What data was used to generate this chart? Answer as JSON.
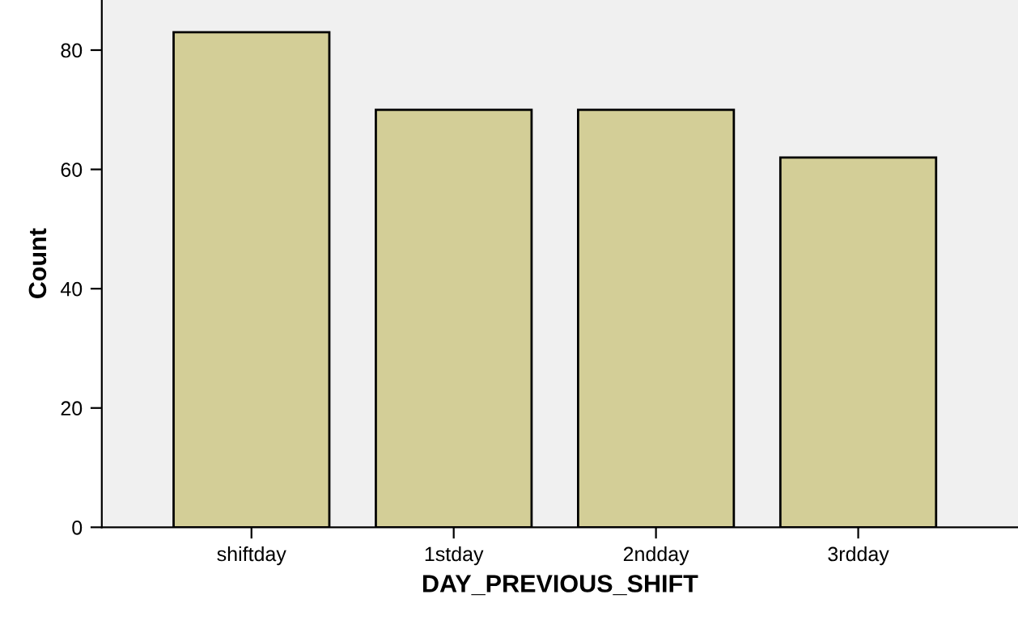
{
  "chart_data": {
    "type": "bar",
    "xlabel": "DAY_PREVIOUS_SHIFT",
    "ylabel": "Count",
    "categories": [
      "shiftday",
      "1stday",
      "2ndday",
      "3rdday"
    ],
    "values": [
      83,
      70,
      70,
      62
    ],
    "color": "#d3ce97",
    "ylim": [
      0,
      88.4
    ],
    "yticks": [
      0,
      20,
      40,
      60,
      80
    ],
    "grid": false,
    "legend": false
  }
}
